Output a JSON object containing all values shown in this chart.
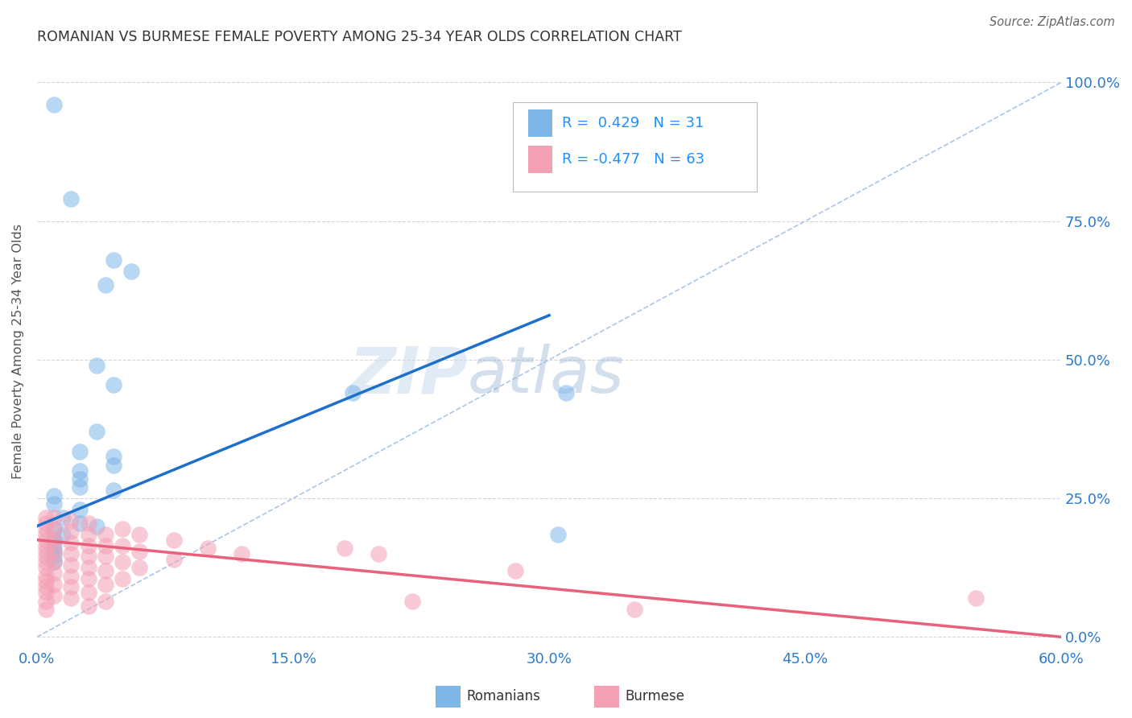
{
  "title": "ROMANIAN VS BURMESE FEMALE POVERTY AMONG 25-34 YEAR OLDS CORRELATION CHART",
  "source": "Source: ZipAtlas.com",
  "ylabel": "Female Poverty Among 25-34 Year Olds",
  "xlim": [
    0.0,
    0.6
  ],
  "ylim": [
    -0.02,
    1.05
  ],
  "plot_ylim": [
    0.0,
    1.0
  ],
  "xticks": [
    0.0,
    0.15,
    0.3,
    0.45,
    0.6
  ],
  "yticks": [
    0.0,
    0.25,
    0.5,
    0.75,
    1.0
  ],
  "ytick_labels_right": [
    "0.0%",
    "25.0%",
    "50.0%",
    "75.0%",
    "100.0%"
  ],
  "xtick_labels": [
    "0.0%",
    "15.0%",
    "30.0%",
    "45.0%",
    "60.0%"
  ],
  "romanian_color": "#7EB6E8",
  "burmese_color": "#F4A0B5",
  "romanian_R": 0.429,
  "romanian_N": 31,
  "burmese_R": -0.477,
  "burmese_N": 63,
  "background_color": "#FFFFFF",
  "grid_color": "#CCCCCC",
  "romanian_points": [
    [
      0.01,
      0.96
    ],
    [
      0.02,
      0.79
    ],
    [
      0.045,
      0.68
    ],
    [
      0.055,
      0.66
    ],
    [
      0.04,
      0.635
    ],
    [
      0.035,
      0.49
    ],
    [
      0.045,
      0.455
    ],
    [
      0.035,
      0.37
    ],
    [
      0.025,
      0.335
    ],
    [
      0.045,
      0.325
    ],
    [
      0.045,
      0.31
    ],
    [
      0.025,
      0.3
    ],
    [
      0.025,
      0.285
    ],
    [
      0.025,
      0.27
    ],
    [
      0.045,
      0.265
    ],
    [
      0.01,
      0.255
    ],
    [
      0.01,
      0.24
    ],
    [
      0.025,
      0.23
    ],
    [
      0.015,
      0.215
    ],
    [
      0.025,
      0.205
    ],
    [
      0.035,
      0.2
    ],
    [
      0.01,
      0.195
    ],
    [
      0.015,
      0.185
    ],
    [
      0.01,
      0.175
    ],
    [
      0.01,
      0.165
    ],
    [
      0.01,
      0.155
    ],
    [
      0.01,
      0.145
    ],
    [
      0.01,
      0.135
    ],
    [
      0.185,
      0.44
    ],
    [
      0.305,
      0.185
    ],
    [
      0.31,
      0.44
    ]
  ],
  "burmese_points": [
    [
      0.005,
      0.215
    ],
    [
      0.005,
      0.205
    ],
    [
      0.005,
      0.195
    ],
    [
      0.005,
      0.185
    ],
    [
      0.005,
      0.175
    ],
    [
      0.005,
      0.165
    ],
    [
      0.005,
      0.155
    ],
    [
      0.005,
      0.145
    ],
    [
      0.005,
      0.135
    ],
    [
      0.005,
      0.125
    ],
    [
      0.005,
      0.11
    ],
    [
      0.005,
      0.1
    ],
    [
      0.005,
      0.09
    ],
    [
      0.005,
      0.08
    ],
    [
      0.005,
      0.065
    ],
    [
      0.005,
      0.05
    ],
    [
      0.01,
      0.215
    ],
    [
      0.01,
      0.195
    ],
    [
      0.01,
      0.175
    ],
    [
      0.01,
      0.155
    ],
    [
      0.01,
      0.135
    ],
    [
      0.01,
      0.115
    ],
    [
      0.01,
      0.095
    ],
    [
      0.01,
      0.075
    ],
    [
      0.02,
      0.21
    ],
    [
      0.02,
      0.19
    ],
    [
      0.02,
      0.17
    ],
    [
      0.02,
      0.15
    ],
    [
      0.02,
      0.13
    ],
    [
      0.02,
      0.11
    ],
    [
      0.02,
      0.09
    ],
    [
      0.02,
      0.07
    ],
    [
      0.03,
      0.205
    ],
    [
      0.03,
      0.185
    ],
    [
      0.03,
      0.165
    ],
    [
      0.03,
      0.145
    ],
    [
      0.03,
      0.125
    ],
    [
      0.03,
      0.105
    ],
    [
      0.03,
      0.08
    ],
    [
      0.03,
      0.055
    ],
    [
      0.04,
      0.185
    ],
    [
      0.04,
      0.165
    ],
    [
      0.04,
      0.145
    ],
    [
      0.04,
      0.12
    ],
    [
      0.04,
      0.095
    ],
    [
      0.04,
      0.065
    ],
    [
      0.05,
      0.195
    ],
    [
      0.05,
      0.165
    ],
    [
      0.05,
      0.135
    ],
    [
      0.05,
      0.105
    ],
    [
      0.06,
      0.185
    ],
    [
      0.06,
      0.155
    ],
    [
      0.06,
      0.125
    ],
    [
      0.08,
      0.175
    ],
    [
      0.08,
      0.14
    ],
    [
      0.1,
      0.16
    ],
    [
      0.12,
      0.15
    ],
    [
      0.18,
      0.16
    ],
    [
      0.2,
      0.15
    ],
    [
      0.22,
      0.065
    ],
    [
      0.28,
      0.12
    ],
    [
      0.35,
      0.05
    ],
    [
      0.55,
      0.07
    ]
  ],
  "ref_line_color": "#A0C0E8",
  "romanian_line_color": "#1E6FCC",
  "burmese_line_color": "#E8607A",
  "romanian_line_x": [
    0.0,
    0.3
  ],
  "romanian_line_y": [
    0.2,
    0.58
  ],
  "burmese_line_x": [
    0.0,
    0.6
  ],
  "burmese_line_y": [
    0.175,
    0.0
  ]
}
